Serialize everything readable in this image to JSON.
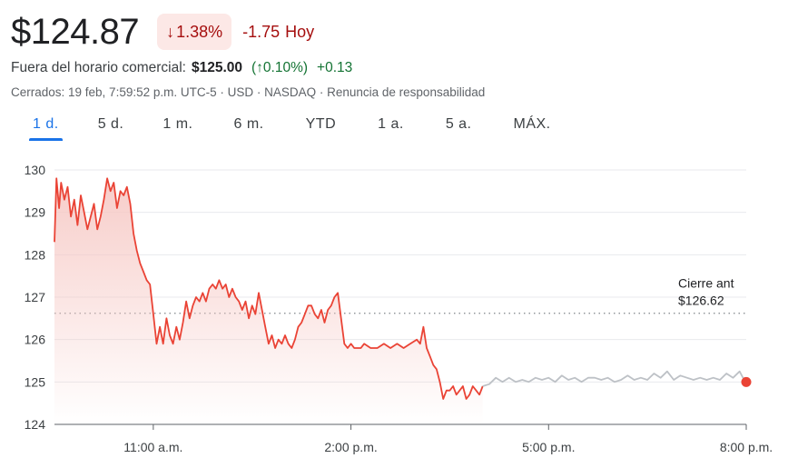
{
  "header": {
    "price": "$124.87",
    "change_arrow": "↓",
    "change_pct": "1.38%",
    "change_abs": "-1.75",
    "change_period": "Hoy"
  },
  "after_hours": {
    "label": "Fuera del horario comercial:",
    "price": "$125.00",
    "pct": "(↑0.10%)",
    "abs": "+0.13"
  },
  "meta": "Cerrados: 19 feb, 7:59:52 p.m. UTC-5 · USD · NASDAQ · Renuncia de responsabilidad",
  "tabs": [
    {
      "label": "1 d.",
      "active": true
    },
    {
      "label": "5 d.",
      "active": false
    },
    {
      "label": "1 m.",
      "active": false
    },
    {
      "label": "6 m.",
      "active": false
    },
    {
      "label": "YTD",
      "active": false
    },
    {
      "label": "1 a.",
      "active": false
    },
    {
      "label": "5 a.",
      "active": false
    },
    {
      "label": "MÁX.",
      "active": false
    }
  ],
  "colors": {
    "regular": "#ea4335",
    "afterhours": "#bdc1c6",
    "fill_top": "#f6c7c3",
    "gridline": "#e8eaed",
    "baseline": "#5f6368",
    "prev_close_line": "#80868b"
  },
  "chart_data": {
    "type": "line",
    "ylim": [
      124,
      130
    ],
    "yticks": [
      "124",
      "125",
      "126",
      "127",
      "128",
      "129",
      "130"
    ],
    "xlim_hours": [
      9.5,
      20.0
    ],
    "xticks": [
      {
        "label": "11:00 a.m.",
        "hour": 11
      },
      {
        "label": "2:00 p.m.",
        "hour": 14
      },
      {
        "label": "5:00 p.m.",
        "hour": 17
      },
      {
        "label": "8:00 p.m.",
        "hour": 20
      }
    ],
    "prev_close": 126.62,
    "prev_close_label": "Cierre ant",
    "prev_close_value_label": "$126.62",
    "series": [
      {
        "kind": "regular",
        "x": [
          9.5,
          9.53,
          9.57,
          9.6,
          9.65,
          9.7,
          9.75,
          9.8,
          9.85,
          9.9,
          9.95,
          10.0,
          10.05,
          10.1,
          10.15,
          10.2,
          10.25,
          10.3,
          10.35,
          10.4,
          10.45,
          10.5,
          10.55,
          10.6,
          10.65,
          10.7,
          10.75,
          10.8,
          10.85,
          10.9,
          10.95,
          11.0,
          11.05,
          11.1,
          11.15,
          11.2,
          11.25,
          11.3,
          11.35,
          11.4,
          11.45,
          11.5,
          11.55,
          11.6,
          11.65,
          11.7,
          11.75,
          11.8,
          11.85,
          11.9,
          11.95,
          12.0,
          12.05,
          12.1,
          12.15,
          12.2,
          12.25,
          12.3,
          12.35,
          12.4,
          12.45,
          12.5,
          12.55,
          12.6,
          12.65,
          12.7,
          12.75,
          12.8,
          12.85,
          12.9,
          12.95,
          13.0,
          13.05,
          13.1,
          13.15,
          13.2,
          13.25,
          13.3,
          13.35,
          13.4,
          13.45,
          13.5,
          13.55,
          13.6,
          13.65,
          13.7,
          13.75,
          13.8,
          13.85,
          13.9,
          13.95,
          14.0,
          14.05,
          14.1,
          14.15,
          14.2,
          14.3,
          14.4,
          14.5,
          14.6,
          14.7,
          14.8,
          14.9,
          15.0,
          15.05,
          15.1,
          15.15,
          15.2,
          15.25,
          15.3,
          15.35,
          15.4,
          15.45,
          15.5,
          15.55,
          15.6,
          15.65,
          15.7,
          15.75,
          15.8,
          15.85,
          15.9,
          15.95,
          16.0
        ],
        "y": [
          128.3,
          129.8,
          129.1,
          129.7,
          129.3,
          129.6,
          128.9,
          129.3,
          128.7,
          129.4,
          129.0,
          128.6,
          128.9,
          129.2,
          128.6,
          128.9,
          129.3,
          129.8,
          129.5,
          129.7,
          129.1,
          129.5,
          129.4,
          129.6,
          129.2,
          128.5,
          128.1,
          127.8,
          127.6,
          127.4,
          127.3,
          126.6,
          125.9,
          126.3,
          125.9,
          126.5,
          126.1,
          125.9,
          126.3,
          126.0,
          126.4,
          126.9,
          126.5,
          126.8,
          127.0,
          126.9,
          127.1,
          126.9,
          127.2,
          127.3,
          127.2,
          127.4,
          127.2,
          127.3,
          127.0,
          127.2,
          127.0,
          126.9,
          126.7,
          126.9,
          126.5,
          126.8,
          126.6,
          127.1,
          126.7,
          126.3,
          125.9,
          126.1,
          125.8,
          126.0,
          125.9,
          126.1,
          125.9,
          125.8,
          126.0,
          126.3,
          126.4,
          126.6,
          126.8,
          126.8,
          126.6,
          126.5,
          126.7,
          126.4,
          126.7,
          126.8,
          127.0,
          127.1,
          126.5,
          125.9,
          125.8,
          125.9,
          125.8,
          125.8,
          125.8,
          125.9,
          125.8,
          125.8,
          125.9,
          125.8,
          125.9,
          125.8,
          125.9,
          126.0,
          125.9,
          126.3,
          125.8,
          125.6,
          125.4,
          125.3,
          125.0,
          124.6,
          124.8,
          124.8,
          124.9,
          124.7,
          124.8,
          124.9,
          124.6,
          124.7,
          124.9,
          124.8,
          124.7,
          124.9
        ]
      },
      {
        "kind": "afterhours",
        "x": [
          16.0,
          16.1,
          16.2,
          16.3,
          16.4,
          16.5,
          16.6,
          16.7,
          16.8,
          16.9,
          17.0,
          17.1,
          17.2,
          17.3,
          17.4,
          17.5,
          17.6,
          17.7,
          17.8,
          17.9,
          18.0,
          18.1,
          18.2,
          18.3,
          18.4,
          18.5,
          18.6,
          18.7,
          18.8,
          18.9,
          19.0,
          19.1,
          19.2,
          19.3,
          19.4,
          19.5,
          19.6,
          19.7,
          19.8,
          19.9,
          19.95,
          20.0
        ],
        "y": [
          124.9,
          124.95,
          125.1,
          125.0,
          125.1,
          125.0,
          125.05,
          125.0,
          125.1,
          125.05,
          125.1,
          125.0,
          125.15,
          125.05,
          125.1,
          125.0,
          125.1,
          125.1,
          125.05,
          125.1,
          125.0,
          125.05,
          125.15,
          125.05,
          125.1,
          125.05,
          125.2,
          125.1,
          125.25,
          125.05,
          125.15,
          125.1,
          125.05,
          125.1,
          125.05,
          125.1,
          125.05,
          125.2,
          125.1,
          125.25,
          125.1,
          125.0
        ]
      }
    ],
    "last_point": {
      "hour": 20.0,
      "value": 125.0
    }
  }
}
